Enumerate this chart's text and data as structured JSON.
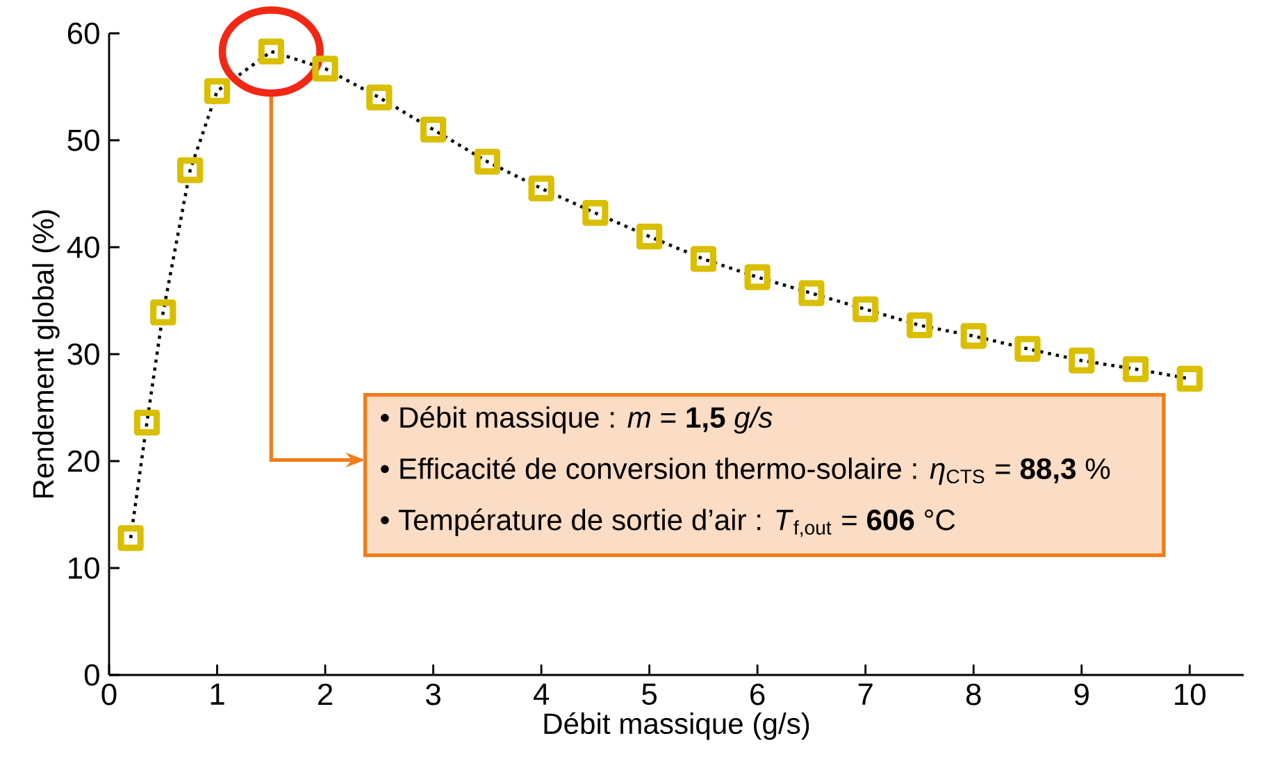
{
  "chart_data": {
    "type": "line",
    "xlabel": "Débit massique (g/s)",
    "ylabel": "Rendement global (%)",
    "x": [
      0.2,
      0.35,
      0.5,
      0.75,
      1,
      1.5,
      2,
      2.5,
      3,
      3.5,
      4,
      4.5,
      5,
      5.5,
      6,
      6.5,
      7,
      7.5,
      8,
      8.5,
      9,
      9.5,
      10
    ],
    "series": [
      {
        "color": "#d9bf00",
        "values": [
          12.8,
          23.6,
          33.9,
          47.2,
          54.6,
          58.3,
          56.7,
          54.0,
          51.0,
          48.0,
          45.5,
          43.2,
          41.0,
          38.9,
          37.2,
          35.7,
          34.2,
          32.7,
          31.7,
          30.5,
          29.4,
          28.6,
          27.7
        ]
      }
    ],
    "marker": "square",
    "line_style": "dotted",
    "xlim": [
      0,
      10.5
    ],
    "ylim": [
      0,
      60
    ],
    "xticks": [
      0,
      1,
      2,
      3,
      4,
      5,
      6,
      7,
      8,
      9,
      10
    ],
    "yticks": [
      0,
      10,
      20,
      30,
      40,
      50,
      60
    ],
    "annotations": [
      "•   Débit massique : *m* = **1,5** *g/s*",
      "•   Efficacité de conversion thermo-solaire : *η*$_{CTS}$ = **88,3** %",
      "•   Température de sortie d’air : *T*$_{f,out}$ = **606** °C"
    ]
  }
}
